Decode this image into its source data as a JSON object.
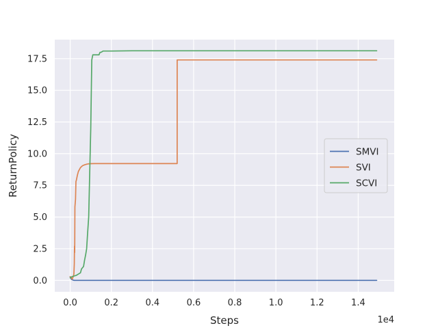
{
  "chart_data": {
    "type": "line",
    "title": "",
    "xlabel": "Steps",
    "ylabel": "ReturnPolicy",
    "x_offset_label": "1e4",
    "xlim": [
      -0.075,
      1.575
    ],
    "ylim": [
      -0.9,
      19.0
    ],
    "x_ticks": [
      0.0,
      0.2,
      0.4,
      0.6,
      0.8,
      1.0,
      1.2,
      1.4
    ],
    "x_tick_labels": [
      "0.0",
      "0.2",
      "0.4",
      "0.6",
      "0.8",
      "1.0",
      "1.2",
      "1.4"
    ],
    "y_ticks": [
      0.0,
      2.5,
      5.0,
      7.5,
      10.0,
      12.5,
      15.0,
      17.5
    ],
    "y_tick_labels": [
      "0.0",
      "2.5",
      "5.0",
      "7.5",
      "10.0",
      "12.5",
      "15.0",
      "17.5"
    ],
    "grid": true,
    "legend_position": "center-right",
    "series": [
      {
        "name": "SMVI",
        "color": "#4c72b0",
        "x": [
          0.0,
          0.005,
          0.01,
          0.015,
          0.02,
          0.03,
          0.05,
          0.1,
          0.3,
          0.6,
          1.0,
          1.49
        ],
        "y": [
          0.3,
          0.1,
          0.05,
          0.02,
          0.0,
          0.0,
          0.0,
          0.0,
          0.0,
          0.0,
          0.0,
          0.0
        ]
      },
      {
        "name": "SVI",
        "color": "#dd8452",
        "x": [
          0.0,
          0.005,
          0.01,
          0.015,
          0.018,
          0.02,
          0.021,
          0.022,
          0.023,
          0.024,
          0.025,
          0.026,
          0.028,
          0.03,
          0.035,
          0.04,
          0.05,
          0.06,
          0.07,
          0.08,
          0.09,
          0.1,
          0.12,
          0.15,
          0.2,
          0.3,
          0.4,
          0.52,
          0.5201,
          0.6,
          1.0,
          1.49
        ],
        "y": [
          0.3,
          0.2,
          0.1,
          0.3,
          0.5,
          1.3,
          2.7,
          2.2,
          5.8,
          6.0,
          6.2,
          6.4,
          7.8,
          7.9,
          8.3,
          8.6,
          8.9,
          9.05,
          9.12,
          9.17,
          9.2,
          9.21,
          9.22,
          9.22,
          9.22,
          9.22,
          9.22,
          9.22,
          17.4,
          17.4,
          17.4,
          17.4
        ]
      },
      {
        "name": "SCVI",
        "color": "#55a868",
        "x": [
          0.0,
          0.01,
          0.02,
          0.03,
          0.04,
          0.05,
          0.055,
          0.06,
          0.065,
          0.07,
          0.075,
          0.08,
          0.085,
          0.09,
          0.095,
          0.1,
          0.105,
          0.11,
          0.115,
          0.12,
          0.125,
          0.13,
          0.135,
          0.14,
          0.145,
          0.15,
          0.155,
          0.16,
          0.18,
          0.2,
          0.3,
          0.6,
          1.0,
          1.49
        ],
        "y": [
          0.2,
          0.3,
          0.35,
          0.4,
          0.5,
          0.6,
          0.9,
          1.0,
          1.1,
          1.6,
          2.0,
          2.5,
          3.8,
          5.0,
          8.5,
          12.0,
          17.4,
          17.8,
          17.8,
          17.8,
          17.8,
          17.8,
          17.8,
          17.8,
          18.0,
          18.0,
          18.05,
          18.1,
          18.1,
          18.1,
          18.12,
          18.12,
          18.12,
          18.12
        ]
      }
    ]
  }
}
